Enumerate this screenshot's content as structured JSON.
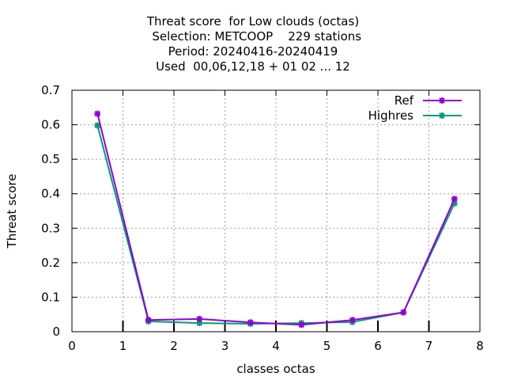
{
  "title_lines": [
    "Threat score  for Low clouds (octas)",
    "  Selection: METCOOP    229 stations",
    "Period: 20240416-20240419",
    "Used  00,06,12,18 + 01 02 ... 12"
  ],
  "chart_data": {
    "type": "line",
    "xlabel": "classes octas",
    "ylabel": "Threat score",
    "xlim": [
      0,
      8
    ],
    "ylim": [
      0,
      0.7
    ],
    "x_ticks": [
      "0",
      "1",
      "2",
      "3",
      "4",
      "5",
      "6",
      "7",
      "8"
    ],
    "y_ticks": [
      "0",
      "0.1",
      "0.2",
      "0.3",
      "0.4",
      "0.5",
      "0.6",
      "0.7"
    ],
    "grid": true,
    "legend_position": "top-right",
    "x": [
      0.5,
      1.5,
      2.5,
      3.5,
      4.5,
      5.5,
      6.5,
      7.5
    ],
    "series": [
      {
        "name": "Ref",
        "color": "#9400d3",
        "values": [
          0.632,
          0.034,
          0.037,
          0.027,
          0.02,
          0.034,
          0.056,
          0.385
        ]
      },
      {
        "name": "Highres",
        "color": "#009e73",
        "values": [
          0.598,
          0.03,
          0.025,
          0.023,
          0.025,
          0.028,
          0.056,
          0.372
        ]
      }
    ]
  }
}
